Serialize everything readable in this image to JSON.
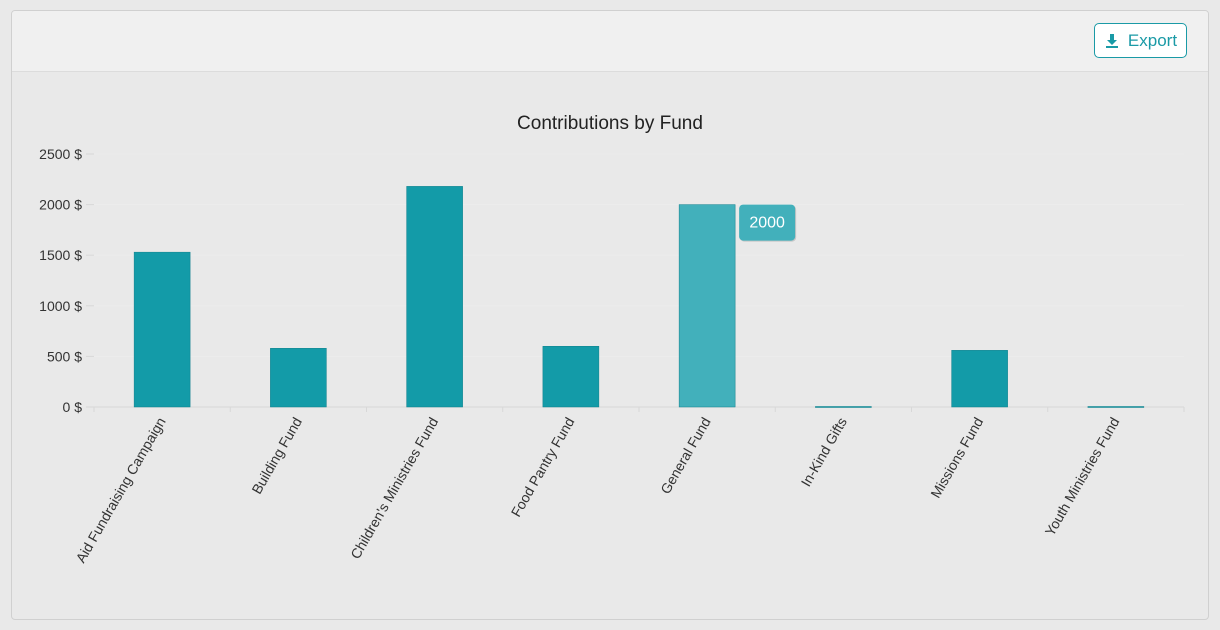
{
  "toolbar": {
    "export_label": "Export",
    "export_icon": "download-icon"
  },
  "colors": {
    "bar": "#139ba8",
    "bar_highlight": "#42b0bb",
    "tooltip_bg": "#42b0bb",
    "accent": "#1a9aa6"
  },
  "tooltip": {
    "text": "2000",
    "category": "General Fund"
  },
  "chart_data": {
    "type": "bar",
    "title": "Contributions by Fund",
    "xlabel": "",
    "ylabel": "",
    "categories": [
      "Aid Fundraising Campaign",
      "Building Fund",
      "Children's Ministries Fund",
      "Food Pantry Fund",
      "General Fund",
      "In-Kind Gifts",
      "Missions Fund",
      "Youth Ministries Fund"
    ],
    "values": [
      1530,
      580,
      2180,
      600,
      2000,
      5,
      560,
      5
    ],
    "ylim": [
      0,
      2500
    ],
    "yticks": [
      0,
      500,
      1000,
      1500,
      2000,
      2500
    ],
    "ytick_labels": [
      "0 $",
      "500 $",
      "1000 $",
      "1500 $",
      "2000 $",
      "2500 $"
    ],
    "highlighted_category": "General Fund",
    "grid": true,
    "legend": "none"
  }
}
